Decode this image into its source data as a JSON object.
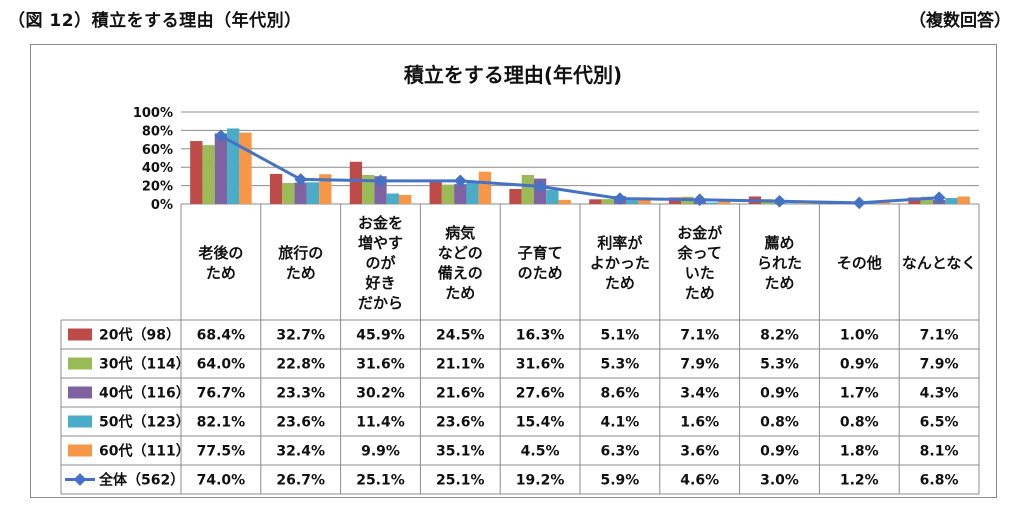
{
  "header": {
    "figure_label": "（図 12）積立をする理由（年代別）",
    "note": "（複数回答）"
  },
  "chart_data": {
    "type": "bar",
    "title": "積立をする理由(年代別)",
    "yticks": [
      "100%",
      "80%",
      "60%",
      "40%",
      "20%",
      "0%"
    ],
    "ylim": [
      0,
      100
    ],
    "grid": true,
    "legend_placement": "left of data table",
    "categories": [
      "老後の\nため",
      "旅行の\nため",
      "お金を\n増やす\nのが\n好き\nだから",
      "病気\nなどの\n備えの\nため",
      "子育て\nのため",
      "利率が\nよかった\nため",
      "お金が\n余って\nいた\nため",
      "薦め\nられた\nため",
      "その他",
      "なんとなく"
    ],
    "series": [
      {
        "name": "20代（98）",
        "color": "#be4b48",
        "values": [
          68.4,
          32.7,
          45.9,
          24.5,
          16.3,
          5.1,
          7.1,
          8.2,
          1.0,
          7.1
        ]
      },
      {
        "name": "30代（114）",
        "color": "#9bbb59",
        "values": [
          64.0,
          22.8,
          31.6,
          21.1,
          31.6,
          5.3,
          7.9,
          5.3,
          0.9,
          7.9
        ]
      },
      {
        "name": "40代（116）",
        "color": "#7f62a1",
        "values": [
          76.7,
          23.3,
          30.2,
          21.6,
          27.6,
          8.6,
          3.4,
          0.9,
          1.7,
          4.3
        ]
      },
      {
        "name": "50代（123）",
        "color": "#4aacc6",
        "values": [
          82.1,
          23.6,
          11.4,
          23.6,
          15.4,
          4.1,
          1.6,
          0.8,
          0.8,
          6.5
        ]
      },
      {
        "name": "60代（111）",
        "color": "#f79646",
        "values": [
          77.5,
          32.4,
          9.9,
          35.1,
          4.5,
          6.3,
          3.6,
          0.9,
          1.8,
          8.1
        ]
      },
      {
        "name": "全体（562）",
        "color": "#4472c4",
        "type": "line",
        "values": [
          74.0,
          26.7,
          25.1,
          25.1,
          19.2,
          5.9,
          4.6,
          3.0,
          1.2,
          6.8
        ]
      }
    ],
    "table_values": [
      [
        "68.4%",
        "32.7%",
        "45.9%",
        "24.5%",
        "16.3%",
        "5.1%",
        "7.1%",
        "8.2%",
        "1.0%",
        "7.1%"
      ],
      [
        "64.0%",
        "22.8%",
        "31.6%",
        "21.1%",
        "31.6%",
        "5.3%",
        "7.9%",
        "5.3%",
        "0.9%",
        "7.9%"
      ],
      [
        "76.7%",
        "23.3%",
        "30.2%",
        "21.6%",
        "27.6%",
        "8.6%",
        "3.4%",
        "0.9%",
        "1.7%",
        "4.3%"
      ],
      [
        "82.1%",
        "23.6%",
        "11.4%",
        "23.6%",
        "15.4%",
        "4.1%",
        "1.6%",
        "0.8%",
        "0.8%",
        "6.5%"
      ],
      [
        "77.5%",
        "32.4%",
        "9.9%",
        "35.1%",
        "4.5%",
        "6.3%",
        "3.6%",
        "0.9%",
        "1.8%",
        "8.1%"
      ],
      [
        "74.0%",
        "26.7%",
        "25.1%",
        "25.1%",
        "19.2%",
        "5.9%",
        "4.6%",
        "3.0%",
        "1.2%",
        "6.8%"
      ]
    ]
  }
}
